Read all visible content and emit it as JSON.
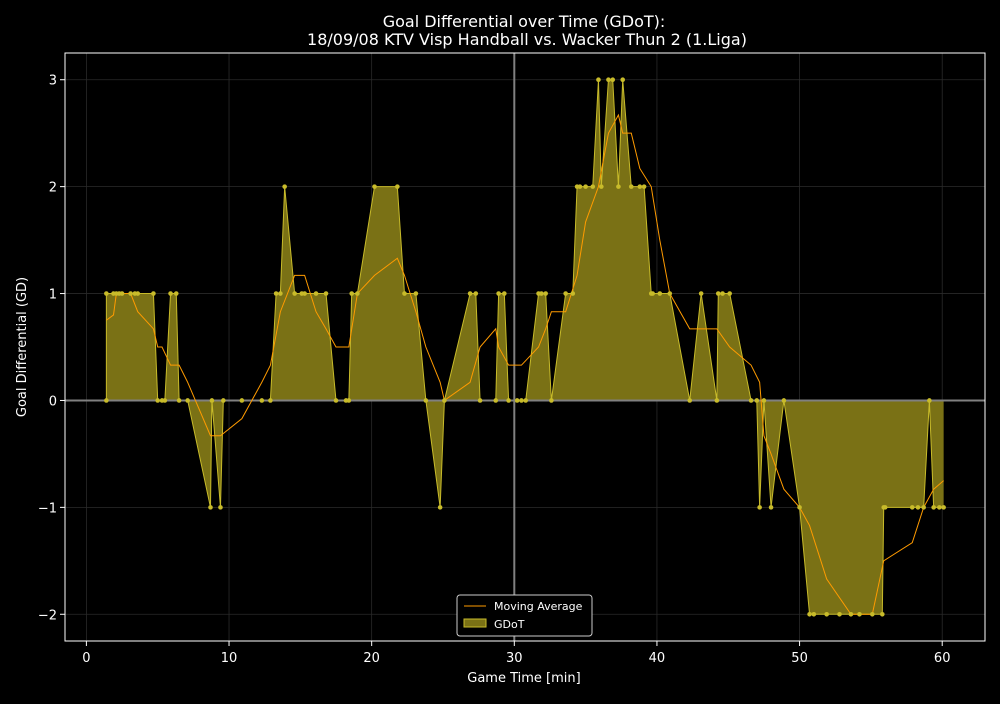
{
  "chart_data": {
    "type": "area",
    "title_line1": "Goal Differential over Time (GDoT):",
    "title_line2": "18/09/08 KTV Visp Handball  vs.  Wacker Thun 2 (1.Liga)",
    "xlabel": "Game Time [min]",
    "ylabel": "Goal Differential (GD)",
    "xlim": [
      -1.5,
      63.0
    ],
    "ylim": [
      -2.25,
      3.25
    ],
    "xticks": [
      0,
      10,
      20,
      30,
      40,
      50,
      60
    ],
    "yticks": [
      3,
      2,
      1,
      0,
      -1,
      -2
    ],
    "ytick_labels": [
      "3",
      "2",
      "1",
      "0",
      "−1",
      "−2"
    ],
    "grid": true,
    "halftime_line": 30,
    "zero_line": 0,
    "legend_position": "bottom-center",
    "colors": {
      "background": "#000000",
      "area_fill": "#7a7115",
      "area_edge": "#c8bb2a",
      "moving_average": "#ff9b00",
      "axis": "#ffffff",
      "grid": "#2a2a2a",
      "reference_line": "#808080"
    },
    "series": [
      {
        "name": "GDoT",
        "kind": "step-area",
        "x": [
          1.4,
          1.4,
          1.9,
          2.1,
          2.3,
          2.5,
          3.1,
          3.4,
          3.6,
          4.7,
          5.0,
          5.3,
          5.5,
          5.9,
          6.3,
          6.5,
          7.1,
          8.7,
          8.8,
          9.4,
          9.6,
          10.9,
          12.3,
          12.9,
          13.3,
          13.6,
          13.9,
          14.6,
          15.1,
          15.3,
          16.1,
          16.8,
          17.5,
          18.2,
          18.4,
          18.6,
          19.0,
          20.2,
          21.8,
          22.3,
          23.1,
          23.8,
          24.8,
          25.1,
          26.9,
          27.3,
          27.6,
          28.7,
          28.9,
          29.3,
          29.6,
          30.2,
          30.5,
          30.8,
          31.7,
          31.9,
          32.2,
          32.6,
          33.6,
          34.1,
          34.4,
          34.6,
          35.0,
          35.5,
          35.9,
          36.1,
          36.6,
          36.9,
          37.3,
          37.6,
          38.2,
          38.8,
          39.1,
          39.6,
          39.7,
          40.2,
          40.9,
          42.3,
          43.1,
          44.2,
          44.3,
          44.6,
          45.1,
          46.6,
          47.0,
          47.2,
          47.5,
          48.0,
          48.9,
          50.0,
          50.7,
          51.0,
          51.9,
          52.8,
          53.6,
          54.2,
          55.1,
          55.8,
          55.9,
          56.0,
          57.9,
          58.3,
          58.7,
          59.1,
          59.4,
          59.8,
          60.1
        ],
        "y": [
          0,
          1,
          1,
          1,
          1,
          1,
          1,
          1,
          1,
          1,
          0,
          0,
          0,
          1,
          1,
          0,
          0,
          -1,
          0,
          -1,
          0,
          0,
          0,
          0,
          1,
          1,
          2,
          1,
          1,
          1,
          1,
          1,
          0,
          0,
          0,
          1,
          1,
          2,
          2,
          1,
          1,
          0,
          -1,
          0,
          1,
          1,
          0,
          0,
          1,
          1,
          0,
          0,
          0,
          0,
          1,
          1,
          1,
          0,
          1,
          1,
          2,
          2,
          2,
          2,
          3,
          2,
          3,
          3,
          2,
          3,
          2,
          2,
          2,
          1,
          1,
          1,
          1,
          0,
          1,
          0,
          1,
          1,
          1,
          0,
          0,
          -1,
          0,
          -1,
          0,
          -1,
          -2,
          -2,
          -2,
          -2,
          -2,
          -2,
          -2,
          -2,
          -1,
          -1,
          -1,
          -1,
          -1,
          0,
          -1,
          -1,
          -1
        ]
      },
      {
        "name": "Moving Average",
        "kind": "line",
        "x": [
          1.4,
          1.9,
          2.1,
          2.5,
          3.1,
          3.6,
          4.7,
          5.0,
          5.3,
          5.9,
          6.5,
          7.1,
          8.7,
          9.4,
          10.9,
          12.3,
          12.9,
          13.6,
          14.6,
          15.3,
          16.1,
          16.8,
          17.5,
          18.4,
          19.0,
          20.2,
          21.8,
          22.3,
          23.1,
          23.8,
          24.8,
          25.1,
          26.9,
          27.6,
          28.7,
          28.9,
          29.6,
          30.5,
          31.7,
          32.2,
          32.6,
          33.6,
          34.4,
          35.0,
          35.9,
          36.6,
          37.3,
          37.6,
          38.2,
          38.8,
          39.6,
          40.2,
          40.9,
          42.3,
          43.1,
          44.2,
          45.1,
          46.6,
          47.2,
          47.5,
          48.0,
          48.9,
          50.0,
          50.7,
          51.9,
          53.6,
          55.1,
          55.9,
          57.9,
          58.7,
          59.4,
          60.1
        ],
        "y": [
          0.75,
          0.8,
          1.0,
          1.0,
          1.0,
          0.83,
          0.67,
          0.5,
          0.5,
          0.33,
          0.33,
          0.17,
          -0.33,
          -0.33,
          -0.17,
          0.17,
          0.33,
          0.83,
          1.17,
          1.17,
          0.83,
          0.67,
          0.5,
          0.5,
          1.0,
          1.17,
          1.33,
          1.17,
          0.83,
          0.5,
          0.17,
          0.0,
          0.17,
          0.5,
          0.67,
          0.5,
          0.33,
          0.33,
          0.5,
          0.67,
          0.83,
          0.83,
          1.17,
          1.67,
          2.0,
          2.5,
          2.67,
          2.5,
          2.5,
          2.17,
          2.0,
          1.5,
          1.0,
          0.67,
          0.67,
          0.67,
          0.5,
          0.33,
          0.17,
          -0.33,
          -0.5,
          -0.83,
          -1.0,
          -1.17,
          -1.67,
          -2.0,
          -2.0,
          -1.5,
          -1.33,
          -1.0,
          -0.83,
          -0.75
        ]
      }
    ]
  }
}
